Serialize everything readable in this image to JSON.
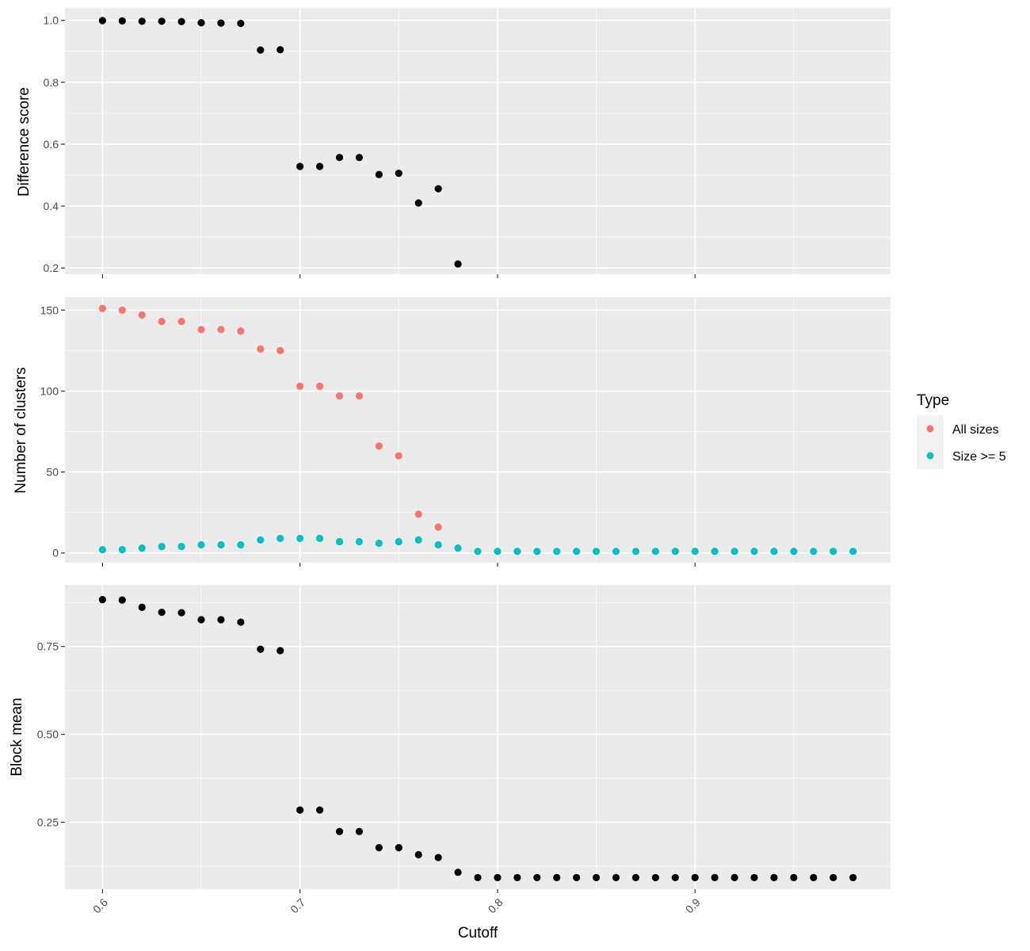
{
  "chart_data": [
    {
      "type": "scatter",
      "panel": "top",
      "ylabel": "Difference score",
      "ylim": [
        0.18,
        1.04
      ],
      "yticks": [
        0.2,
        0.4,
        0.6,
        0.8,
        1.0
      ],
      "ytick_labels": [
        "0.2",
        "0.4",
        "0.6",
        "0.8",
        "1.0"
      ],
      "color": "#000000",
      "x": [
        0.6,
        0.61,
        0.62,
        0.63,
        0.64,
        0.65,
        0.66,
        0.67,
        0.68,
        0.69,
        0.7,
        0.71,
        0.72,
        0.73,
        0.74,
        0.75,
        0.76,
        0.77,
        0.78
      ],
      "y": [
        0.999,
        0.998,
        0.997,
        0.997,
        0.996,
        0.992,
        0.991,
        0.99,
        0.904,
        0.905,
        0.528,
        0.528,
        0.557,
        0.557,
        0.502,
        0.506,
        0.41,
        0.456,
        0.213
      ]
    },
    {
      "type": "scatter",
      "panel": "middle",
      "ylabel": "Number of clusters",
      "ylim": [
        -6,
        158
      ],
      "yticks": [
        0,
        50,
        100,
        150
      ],
      "ytick_labels": [
        "0",
        "50",
        "100",
        "150"
      ],
      "legend": {
        "title": "Type",
        "position": "right"
      },
      "series": [
        {
          "name": "All sizes",
          "color": "#F8766D",
          "x": [
            0.6,
            0.61,
            0.62,
            0.63,
            0.64,
            0.65,
            0.66,
            0.67,
            0.68,
            0.69,
            0.7,
            0.71,
            0.72,
            0.73,
            0.74,
            0.75,
            0.76,
            0.77
          ],
          "y": [
            151,
            150,
            147,
            143,
            143,
            138,
            138,
            137,
            126,
            125,
            103,
            103,
            97,
            97,
            66,
            60,
            24,
            16
          ]
        },
        {
          "name": "Size >= 5",
          "color": "#00BFC4",
          "x": [
            0.6,
            0.61,
            0.62,
            0.63,
            0.64,
            0.65,
            0.66,
            0.67,
            0.68,
            0.69,
            0.7,
            0.71,
            0.72,
            0.73,
            0.74,
            0.75,
            0.76,
            0.77,
            0.78,
            0.79,
            0.8,
            0.81,
            0.82,
            0.83,
            0.84,
            0.85,
            0.86,
            0.87,
            0.88,
            0.89,
            0.9,
            0.91,
            0.92,
            0.93,
            0.94,
            0.95,
            0.96,
            0.97,
            0.98
          ],
          "y": [
            2,
            2,
            3,
            4,
            4,
            5,
            5,
            5,
            8,
            9,
            9,
            9,
            7,
            7,
            6,
            7,
            8,
            5,
            3,
            1,
            1,
            1,
            1,
            1,
            1,
            1,
            1,
            1,
            1,
            1,
            1,
            1,
            1,
            1,
            1,
            1,
            1,
            1,
            1
          ]
        }
      ]
    },
    {
      "type": "scatter",
      "panel": "bottom",
      "ylabel": "Block mean",
      "xlabel": "Cutoff",
      "ylim": [
        0.06,
        0.925
      ],
      "yticks": [
        0.25,
        0.5,
        0.75
      ],
      "ytick_labels": [
        "0.25",
        "0.50",
        "0.75"
      ],
      "color": "#000000",
      "x": [
        0.6,
        0.61,
        0.62,
        0.63,
        0.64,
        0.65,
        0.66,
        0.67,
        0.68,
        0.69,
        0.7,
        0.71,
        0.72,
        0.73,
        0.74,
        0.75,
        0.76,
        0.77,
        0.78,
        0.79,
        0.8,
        0.81,
        0.82,
        0.83,
        0.84,
        0.85,
        0.86,
        0.87,
        0.88,
        0.89,
        0.9,
        0.91,
        0.92,
        0.93,
        0.94,
        0.95,
        0.96,
        0.97,
        0.98
      ],
      "y": [
        0.883,
        0.882,
        0.861,
        0.847,
        0.846,
        0.826,
        0.826,
        0.819,
        0.742,
        0.738,
        0.285,
        0.285,
        0.224,
        0.224,
        0.178,
        0.178,
        0.158,
        0.15,
        0.108,
        0.093,
        0.093,
        0.093,
        0.093,
        0.093,
        0.093,
        0.093,
        0.093,
        0.093,
        0.093,
        0.093,
        0.093,
        0.093,
        0.093,
        0.093,
        0.093,
        0.093,
        0.093,
        0.093,
        0.093
      ]
    }
  ],
  "x_axis": {
    "label": "Cutoff",
    "xlim": [
      0.581,
      0.999
    ],
    "ticks": [
      0.6,
      0.7,
      0.8,
      0.9
    ],
    "tick_labels": [
      "0.6",
      "0.7",
      "0.8",
      "0.9"
    ],
    "grid": true
  },
  "colors": {
    "panel_background": "#EBEBEB",
    "grid": "#FFFFFF",
    "all_sizes": "#F8766D",
    "size_ge_5": "#00BFC4",
    "points": "#000000"
  }
}
